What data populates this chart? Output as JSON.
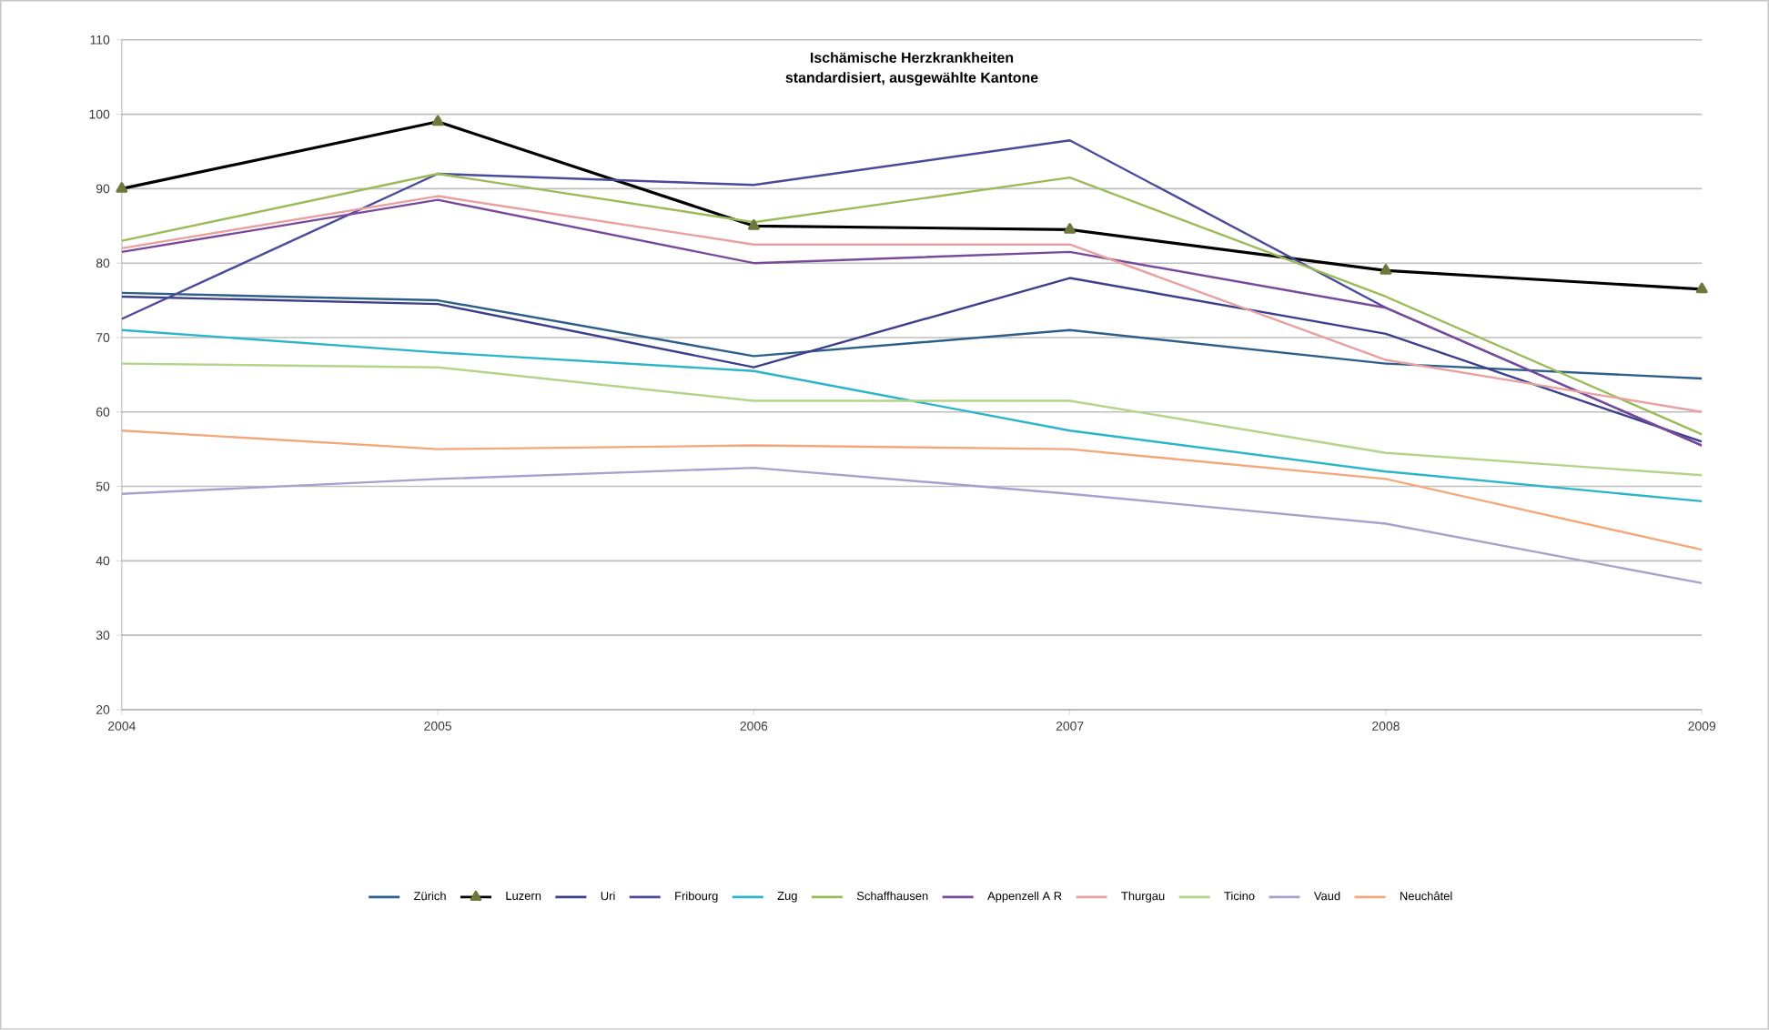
{
  "chart_data": {
    "type": "line",
    "title": "Ischämische  Herzkrankheiten",
    "subtitle": "standardisiert, ausgewählte Kantone",
    "x": [
      2004,
      2005,
      2006,
      2007,
      2008,
      2009
    ],
    "xlim": [
      2004,
      2009
    ],
    "xticks": [
      2004,
      2005,
      2006,
      2007,
      2008,
      2009
    ],
    "ylim": [
      20,
      110
    ],
    "yticks": [
      20,
      30,
      40,
      50,
      60,
      70,
      80,
      90,
      100,
      110
    ],
    "grid": "y",
    "legend": "bottom",
    "marker": "none",
    "line_style": "solid",
    "series": [
      {
        "name": "Zürich",
        "color": "#2e5f8a",
        "values": [
          76,
          75,
          67.5,
          71,
          66.5,
          64.5
        ]
      },
      {
        "name": "Luzern",
        "color": "#000000",
        "marker": "triangle",
        "values": [
          90,
          99,
          85,
          84.5,
          79,
          76.5
        ]
      },
      {
        "name": "Uri",
        "color": "#3b3f8c",
        "values": [
          75.5,
          74.5,
          66,
          78,
          70.5,
          56
        ]
      },
      {
        "name": "Fribourg",
        "color": "#4a4a9a",
        "values": [
          72.5,
          92,
          90.5,
          96.5,
          74,
          55.5
        ]
      },
      {
        "name": "Zug",
        "color": "#2bb5c9",
        "values": [
          71,
          68,
          65.5,
          57.5,
          52,
          48
        ]
      },
      {
        "name": "Schaffhausen",
        "color": "#9bbb59",
        "values": [
          83,
          92,
          85.5,
          91.5,
          75.5,
          57
        ]
      },
      {
        "name": "Appenzell A R",
        "color": "#7a4a9a",
        "values": [
          81.5,
          88.5,
          80,
          81.5,
          74,
          55.5
        ]
      },
      {
        "name": "Thurgau",
        "color": "#e8a0a0",
        "values": [
          82,
          89,
          82.5,
          82.5,
          67,
          60
        ]
      },
      {
        "name": "Ticino",
        "color": "#b5d48a",
        "values": [
          66.5,
          66,
          61.5,
          61.5,
          54.5,
          51.5
        ]
      },
      {
        "name": "Vaud",
        "color": "#a9a0cc",
        "values": [
          49,
          51,
          52.5,
          49,
          45,
          37
        ]
      },
      {
        "name": "Neuchâtel",
        "color": "#f4a77a",
        "values": [
          57.5,
          55,
          55.5,
          55,
          51,
          41.5
        ]
      }
    ]
  }
}
